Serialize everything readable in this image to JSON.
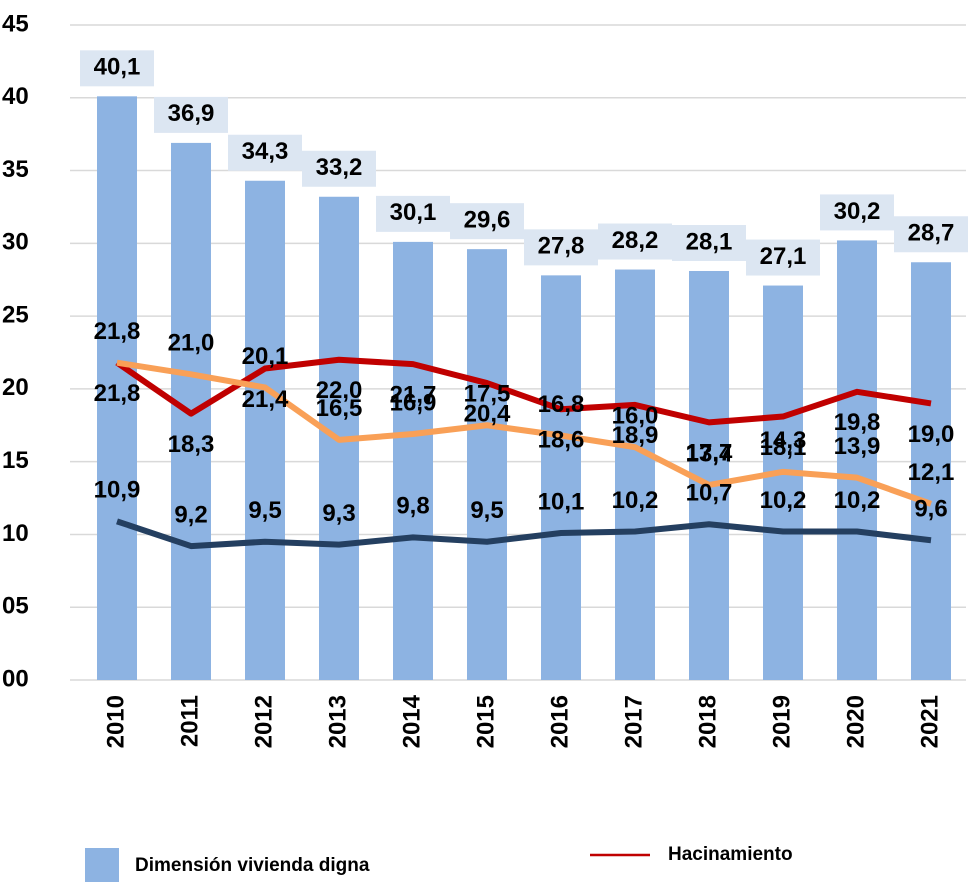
{
  "chart_data": {
    "type": "bar",
    "categories": [
      "2010",
      "2011",
      "2012",
      "2013",
      "2014",
      "2015",
      "2016",
      "2017",
      "2018",
      "2019",
      "2020",
      "2021"
    ],
    "ylim": [
      0,
      45
    ],
    "yticks": [
      {
        "value": 0,
        "label": "00"
      },
      {
        "value": 5,
        "label": "05"
      },
      10,
      15,
      20,
      25,
      30,
      35,
      40,
      45
    ],
    "grid": true,
    "series": [
      {
        "name": "Dimensión vivienda digna",
        "type": "bar",
        "color": "#8db3e2",
        "values": [
          40.1,
          36.9,
          34.3,
          33.2,
          30.1,
          29.6,
          27.8,
          28.2,
          28.1,
          27.1,
          30.2,
          28.7
        ],
        "value_labels": [
          "40,1",
          "36,9",
          "34,3",
          "33,2",
          "30,1",
          "29,6",
          "27,8",
          "28,2",
          "28,1",
          "27,1",
          "30,2",
          "28,7"
        ]
      },
      {
        "name": "Hacinamiento",
        "type": "line",
        "color": "#c00000",
        "values": [
          21.8,
          18.3,
          21.4,
          22.0,
          21.7,
          20.4,
          18.6,
          18.9,
          17.7,
          18.1,
          19.8,
          19.0
        ],
        "value_labels": [
          "21,8",
          "18,3",
          "21,4",
          "22,0",
          "21,7",
          "20,4",
          "18,6",
          "18,9",
          "17,7",
          "18,1",
          "19,8",
          "19,0"
        ]
      },
      {
        "type": "line",
        "color": "#f9a057",
        "values": [
          21.8,
          21.0,
          20.1,
          16.5,
          16.9,
          17.5,
          16.8,
          16.0,
          13.4,
          14.3,
          13.9,
          12.1
        ],
        "value_labels": [
          "21,8",
          "21,0",
          "20,1",
          "16,5",
          "16,9",
          "17,5",
          "16,8",
          "16,0",
          "13,4",
          "14,3",
          "13,9",
          "12,1"
        ]
      },
      {
        "type": "line",
        "color": "#243f60",
        "values": [
          10.9,
          9.2,
          9.5,
          9.3,
          9.8,
          9.5,
          10.1,
          10.2,
          10.7,
          10.2,
          10.2,
          9.6
        ],
        "value_labels": [
          "10,9",
          "9,2",
          "9,5",
          "9,3",
          "9,8",
          "9,5",
          "10,1",
          "10,2",
          "10,7",
          "10,2",
          "10,2",
          "9,6"
        ]
      }
    ]
  }
}
